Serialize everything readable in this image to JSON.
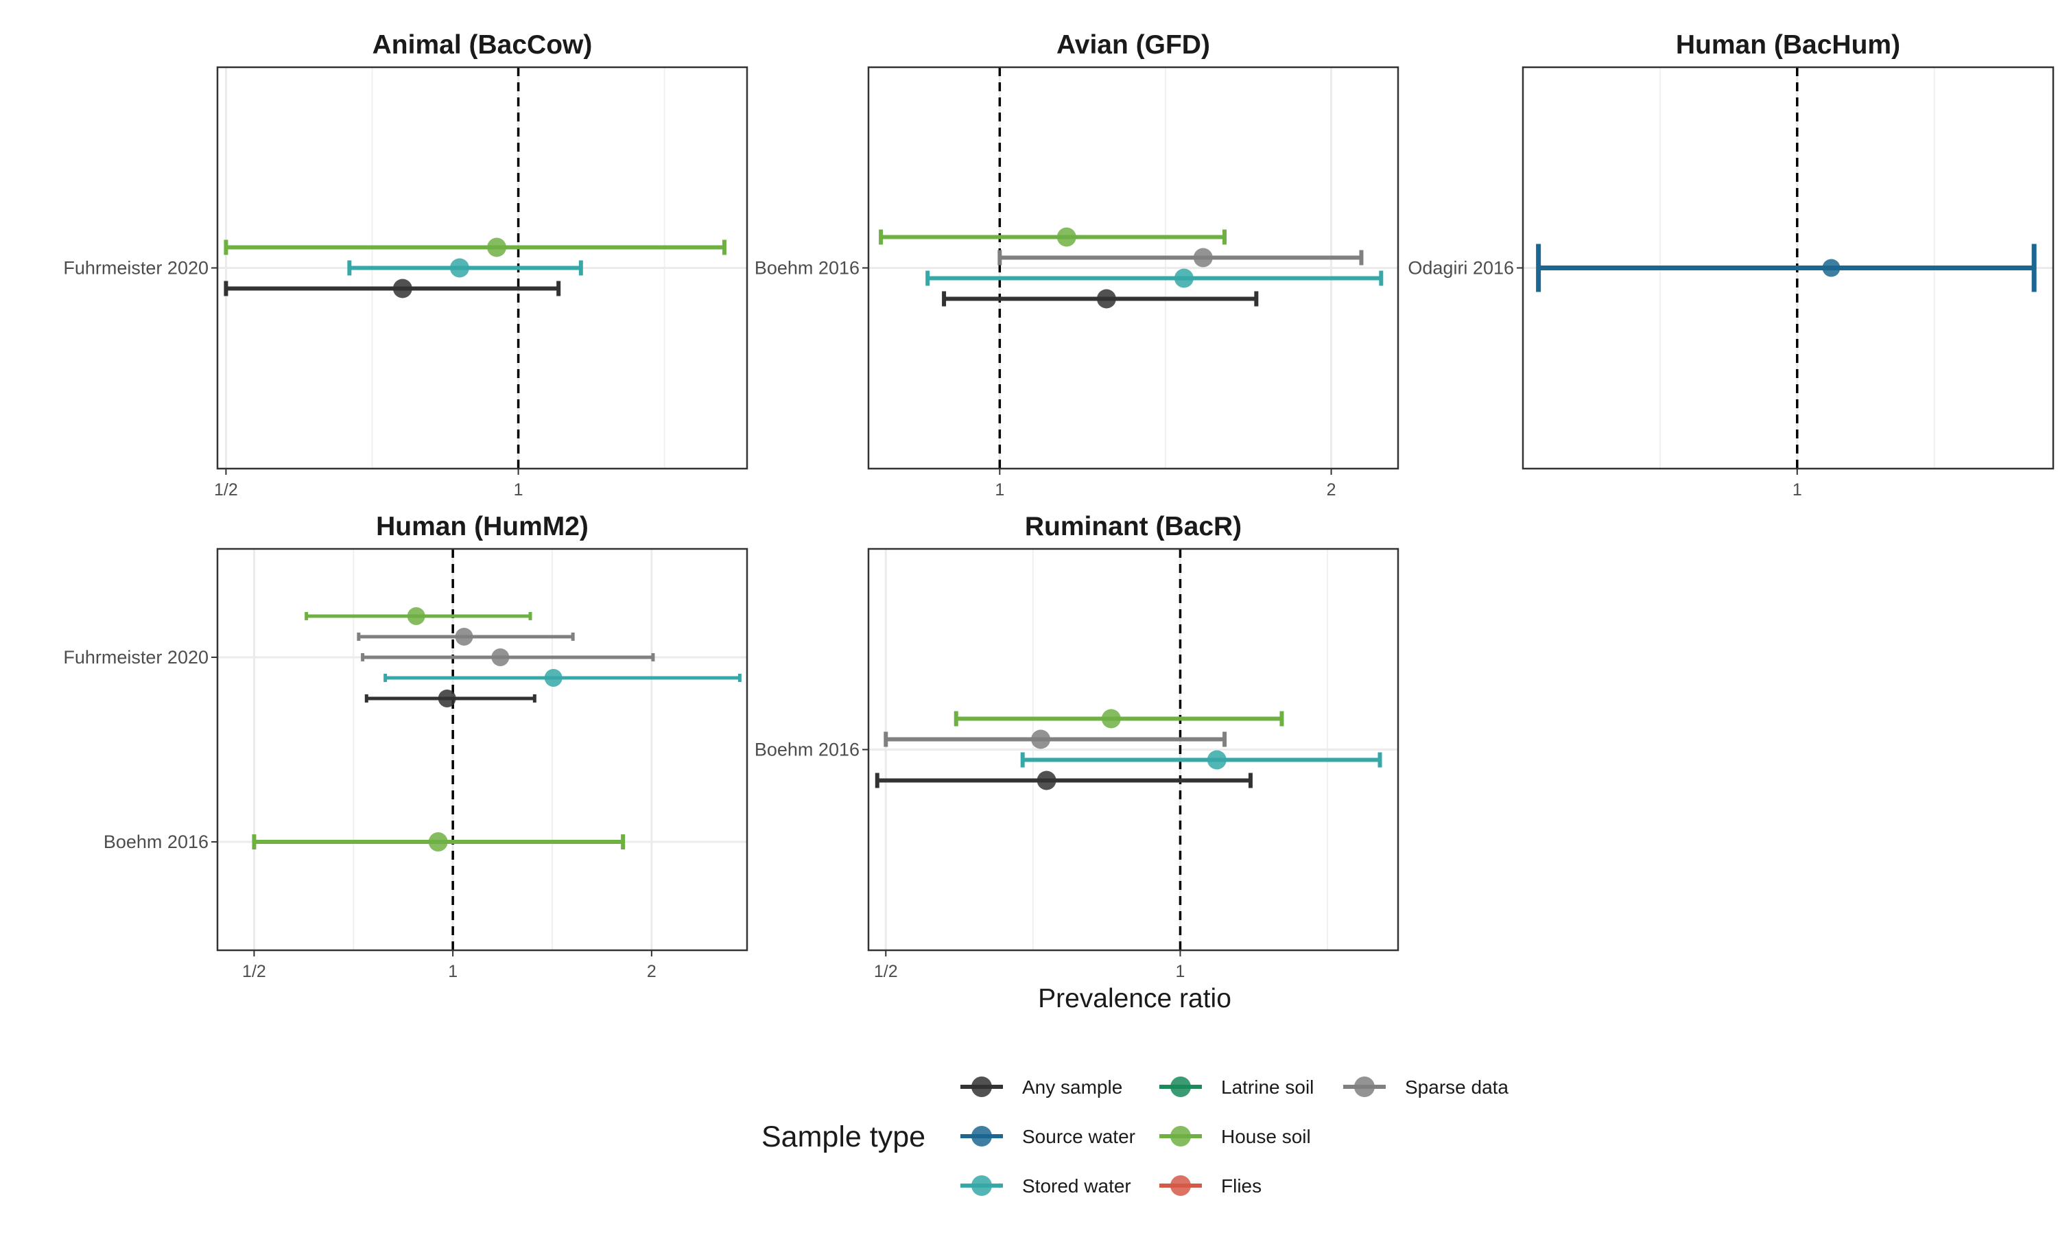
{
  "chart_data": {
    "type": "forest",
    "xlabel": "Prevalence ratio",
    "x_scale": "log2",
    "panels": [
      {
        "title": "Animal (BacCow)",
        "xlim": [
          0.49,
          1.72
        ],
        "xticks": [
          {
            "value": 0.5,
            "label": "1/2"
          },
          {
            "value": 1,
            "label": "1"
          }
        ],
        "studies": [
          {
            "label": "Fuhrmeister 2020",
            "points": [
              {
                "type": "House soil",
                "estimate": 0.95,
                "lower": 0.5,
                "upper": 1.63
              },
              {
                "type": "Stored water",
                "estimate": 0.87,
                "lower": 0.67,
                "upper": 1.16
              },
              {
                "type": "Any sample",
                "estimate": 0.76,
                "lower": 0.5,
                "upper": 1.1
              }
            ]
          }
        ]
      },
      {
        "title": "Avian (GFD)",
        "xlim": [
          0.76,
          2.3
        ],
        "xticks": [
          {
            "value": 1,
            "label": "1"
          },
          {
            "value": 2,
            "label": "2"
          }
        ],
        "studies": [
          {
            "label": "Boehm 2016",
            "points": [
              {
                "type": "House soil",
                "estimate": 1.15,
                "lower": 0.78,
                "upper": 1.6
              },
              {
                "type": "Sparse data",
                "estimate": 1.53,
                "lower": 1.0,
                "upper": 2.13
              },
              {
                "type": "Stored water",
                "estimate": 1.47,
                "lower": 0.86,
                "upper": 2.22
              },
              {
                "type": "Any sample",
                "estimate": 1.25,
                "lower": 0.89,
                "upper": 1.71
              }
            ]
          }
        ]
      },
      {
        "title": "Human (BacHum)",
        "xlim": [
          0.5,
          1.91
        ],
        "xticks": [
          {
            "value": 1,
            "label": "1"
          }
        ],
        "studies": [
          {
            "label": "Odagiri 2016",
            "points": [
              {
                "type": "Source water",
                "estimate": 1.09,
                "lower": 0.52,
                "upper": 1.82
              }
            ]
          }
        ]
      },
      {
        "title": "Human (HumM2)",
        "xlim": [
          0.44,
          2.79
        ],
        "xticks": [
          {
            "value": 0.5,
            "label": "1/2"
          },
          {
            "value": 1,
            "label": "1"
          },
          {
            "value": 2,
            "label": "2"
          }
        ],
        "studies": [
          {
            "label": "Fuhrmeister 2020",
            "points": [
              {
                "type": "House soil",
                "estimate": 0.88,
                "lower": 0.6,
                "upper": 1.31
              },
              {
                "type": "Sparse data",
                "estimate": 1.04,
                "lower": 0.72,
                "upper": 1.52
              },
              {
                "type": "Sparse data",
                "estimate": 1.18,
                "lower": 0.73,
                "upper": 2.01
              },
              {
                "type": "Stored water",
                "estimate": 1.42,
                "lower": 0.79,
                "upper": 2.72
              },
              {
                "type": "Any sample",
                "estimate": 0.98,
                "lower": 0.74,
                "upper": 1.33
              }
            ]
          },
          {
            "label": "Boehm 2016",
            "points": [
              {
                "type": "House soil",
                "estimate": 0.95,
                "lower": 0.5,
                "upper": 1.81
              }
            ]
          }
        ]
      },
      {
        "title": "Ruminant (BacR)",
        "xlim": [
          0.48,
          1.67
        ],
        "xticks": [
          {
            "value": 0.5,
            "label": "1/2"
          },
          {
            "value": 1,
            "label": "1"
          }
        ],
        "studies": [
          {
            "label": "Boehm 2016",
            "points": [
              {
                "type": "House soil",
                "estimate": 0.85,
                "lower": 0.59,
                "upper": 1.27
              },
              {
                "type": "Sparse data",
                "estimate": 0.72,
                "lower": 0.5,
                "upper": 1.11
              },
              {
                "type": "Stored water",
                "estimate": 1.09,
                "lower": 0.69,
                "upper": 1.6
              },
              {
                "type": "Any sample",
                "estimate": 0.73,
                "lower": 0.49,
                "upper": 1.18
              }
            ]
          }
        ]
      }
    ],
    "legend": {
      "title": "Sample type",
      "placement": "bottom",
      "items": [
        {
          "label": "Any sample",
          "color": "#333333"
        },
        {
          "label": "Source water",
          "color": "#1c6791"
        },
        {
          "label": "Stored water",
          "color": "#36a8a8"
        },
        {
          "label": "Latrine soil",
          "color": "#1a8a5a"
        },
        {
          "label": "House soil",
          "color": "#6fb043"
        },
        {
          "label": "Flies",
          "color": "#d45a48"
        },
        {
          "label": "Sparse data",
          "color": "#808080"
        }
      ]
    },
    "reference_line": 1,
    "grid": true
  }
}
